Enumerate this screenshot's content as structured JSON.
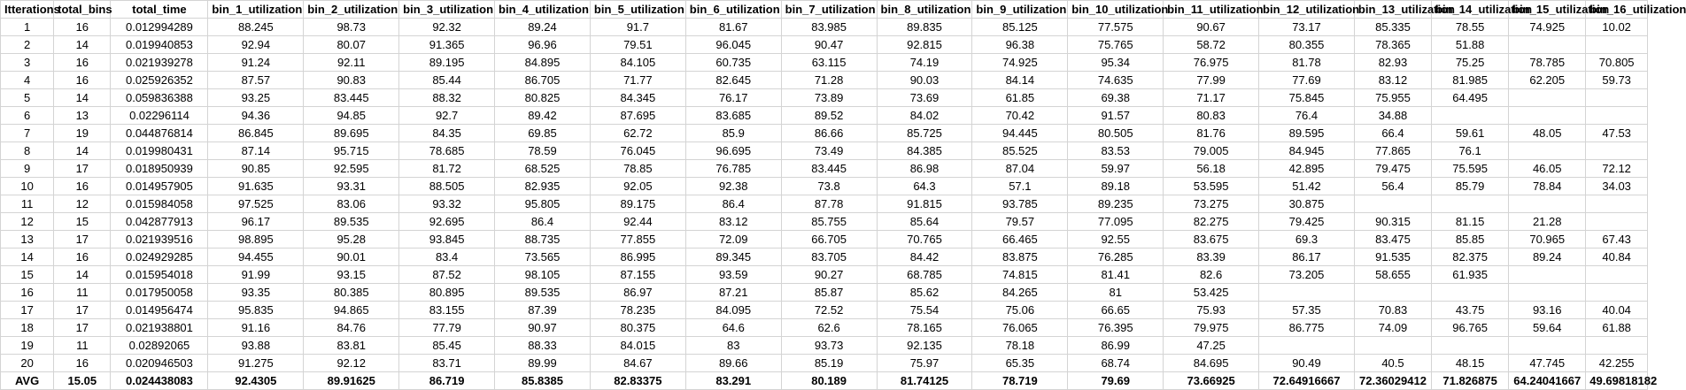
{
  "headers": [
    "Itterations",
    "total_bins",
    "total_time",
    "bin_1_utilization",
    "bin_2_utilization",
    "bin_3_utilization",
    "bin_4_utilization",
    "bin_5_utilization",
    "bin_6_utilization",
    "bin_7_utilization",
    "bin_8_utilization",
    "bin_9_utilization",
    "bin_10_utilization",
    "bin_11_utilization",
    "bin_12_utilization",
    "bin_13_utilization",
    "bin_14_utilization",
    "bin_15_utilization",
    "bin_16_utilization"
  ],
  "rows": [
    [
      "1",
      "16",
      "0.012994289",
      "88.245",
      "98.73",
      "92.32",
      "89.24",
      "91.7",
      "81.67",
      "83.985",
      "89.835",
      "85.125",
      "77.575",
      "90.67",
      "73.17",
      "85.335",
      "78.55",
      "74.925",
      "10.02"
    ],
    [
      "2",
      "14",
      "0.019940853",
      "92.94",
      "80.07",
      "91.365",
      "96.96",
      "79.51",
      "96.045",
      "90.47",
      "92.815",
      "96.38",
      "75.765",
      "58.72",
      "80.355",
      "78.365",
      "51.88",
      "",
      ""
    ],
    [
      "3",
      "16",
      "0.021939278",
      "91.24",
      "92.11",
      "89.195",
      "84.895",
      "84.105",
      "60.735",
      "63.115",
      "74.19",
      "74.925",
      "95.34",
      "76.975",
      "81.78",
      "82.93",
      "75.25",
      "78.785",
      "70.805"
    ],
    [
      "4",
      "16",
      "0.025926352",
      "87.57",
      "90.83",
      "85.44",
      "86.705",
      "71.77",
      "82.645",
      "71.28",
      "90.03",
      "84.14",
      "74.635",
      "77.99",
      "77.69",
      "83.12",
      "81.985",
      "62.205",
      "59.73"
    ],
    [
      "5",
      "14",
      "0.059836388",
      "93.25",
      "83.445",
      "88.32",
      "80.825",
      "84.345",
      "76.17",
      "73.89",
      "73.69",
      "61.85",
      "69.38",
      "71.17",
      "75.845",
      "75.955",
      "64.495",
      "",
      ""
    ],
    [
      "6",
      "13",
      "0.02296114",
      "94.36",
      "94.85",
      "92.7",
      "89.42",
      "87.695",
      "83.685",
      "89.52",
      "84.02",
      "70.42",
      "91.57",
      "80.83",
      "76.4",
      "34.88",
      "",
      "",
      ""
    ],
    [
      "7",
      "19",
      "0.044876814",
      "86.845",
      "89.695",
      "84.35",
      "69.85",
      "62.72",
      "85.9",
      "86.66",
      "85.725",
      "94.445",
      "80.505",
      "81.76",
      "89.595",
      "66.4",
      "59.61",
      "48.05",
      "47.53"
    ],
    [
      "8",
      "14",
      "0.019980431",
      "87.14",
      "95.715",
      "78.685",
      "78.59",
      "76.045",
      "96.695",
      "73.49",
      "84.385",
      "85.525",
      "83.53",
      "79.005",
      "84.945",
      "77.865",
      "76.1",
      "",
      ""
    ],
    [
      "9",
      "17",
      "0.018950939",
      "90.85",
      "92.595",
      "81.72",
      "68.525",
      "78.85",
      "76.785",
      "83.445",
      "86.98",
      "87.04",
      "59.97",
      "56.18",
      "42.895",
      "79.475",
      "75.595",
      "46.05",
      "72.12"
    ],
    [
      "10",
      "16",
      "0.014957905",
      "91.635",
      "93.31",
      "88.505",
      "82.935",
      "92.05",
      "92.38",
      "73.8",
      "64.3",
      "57.1",
      "89.18",
      "53.595",
      "51.42",
      "56.4",
      "85.79",
      "78.84",
      "34.03"
    ],
    [
      "11",
      "12",
      "0.015984058",
      "97.525",
      "83.06",
      "93.32",
      "95.805",
      "89.175",
      "86.4",
      "87.78",
      "91.815",
      "93.785",
      "89.235",
      "73.275",
      "30.875",
      "",
      "",
      "",
      ""
    ],
    [
      "12",
      "15",
      "0.042877913",
      "96.17",
      "89.535",
      "92.695",
      "86.4",
      "92.44",
      "83.12",
      "85.755",
      "85.64",
      "79.57",
      "77.095",
      "82.275",
      "79.425",
      "90.315",
      "81.15",
      "21.28",
      ""
    ],
    [
      "13",
      "17",
      "0.021939516",
      "98.895",
      "95.28",
      "93.845",
      "88.735",
      "77.855",
      "72.09",
      "66.705",
      "70.765",
      "66.465",
      "92.55",
      "83.675",
      "69.3",
      "83.475",
      "85.85",
      "70.965",
      "67.43"
    ],
    [
      "14",
      "16",
      "0.024929285",
      "94.455",
      "90.01",
      "83.4",
      "73.565",
      "86.995",
      "89.345",
      "83.705",
      "84.42",
      "83.875",
      "76.285",
      "83.39",
      "86.17",
      "91.535",
      "82.375",
      "89.24",
      "40.84"
    ],
    [
      "15",
      "14",
      "0.015954018",
      "91.99",
      "93.15",
      "87.52",
      "98.105",
      "87.155",
      "93.59",
      "90.27",
      "68.785",
      "74.815",
      "81.41",
      "82.6",
      "73.205",
      "58.655",
      "61.935",
      "",
      ""
    ],
    [
      "16",
      "11",
      "0.017950058",
      "93.35",
      "80.385",
      "80.895",
      "89.535",
      "86.97",
      "87.21",
      "85.87",
      "85.62",
      "84.265",
      "81",
      "53.425",
      "",
      "",
      "",
      "",
      ""
    ],
    [
      "17",
      "17",
      "0.014956474",
      "95.835",
      "94.865",
      "83.155",
      "87.39",
      "78.235",
      "84.095",
      "72.52",
      "75.54",
      "75.06",
      "66.65",
      "75.93",
      "57.35",
      "70.83",
      "43.75",
      "93.16",
      "40.04"
    ],
    [
      "18",
      "17",
      "0.021938801",
      "91.16",
      "84.76",
      "77.79",
      "90.97",
      "80.375",
      "64.6",
      "62.6",
      "78.165",
      "76.065",
      "76.395",
      "79.975",
      "86.775",
      "74.09",
      "96.765",
      "59.64",
      "61.88"
    ],
    [
      "19",
      "11",
      "0.02892065",
      "93.88",
      "83.81",
      "85.45",
      "88.33",
      "84.015",
      "83",
      "93.73",
      "92.135",
      "78.18",
      "86.99",
      "47.25",
      "",
      "",
      "",
      "",
      ""
    ],
    [
      "20",
      "16",
      "0.020946503",
      "91.275",
      "92.12",
      "83.71",
      "89.99",
      "84.67",
      "89.66",
      "85.19",
      "75.97",
      "65.35",
      "68.74",
      "84.695",
      "90.49",
      "40.5",
      "48.15",
      "47.745",
      "42.255"
    ]
  ],
  "avg_row": [
    "AVG",
    "15.05",
    "0.024438083",
    "92.4305",
    "89.91625",
    "86.719",
    "85.8385",
    "82.83375",
    "83.291",
    "80.189",
    "81.74125",
    "78.719",
    "79.69",
    "73.66925",
    "72.64916667",
    "72.36029412",
    "71.826875",
    "64.24041667",
    "49.69818182"
  ]
}
